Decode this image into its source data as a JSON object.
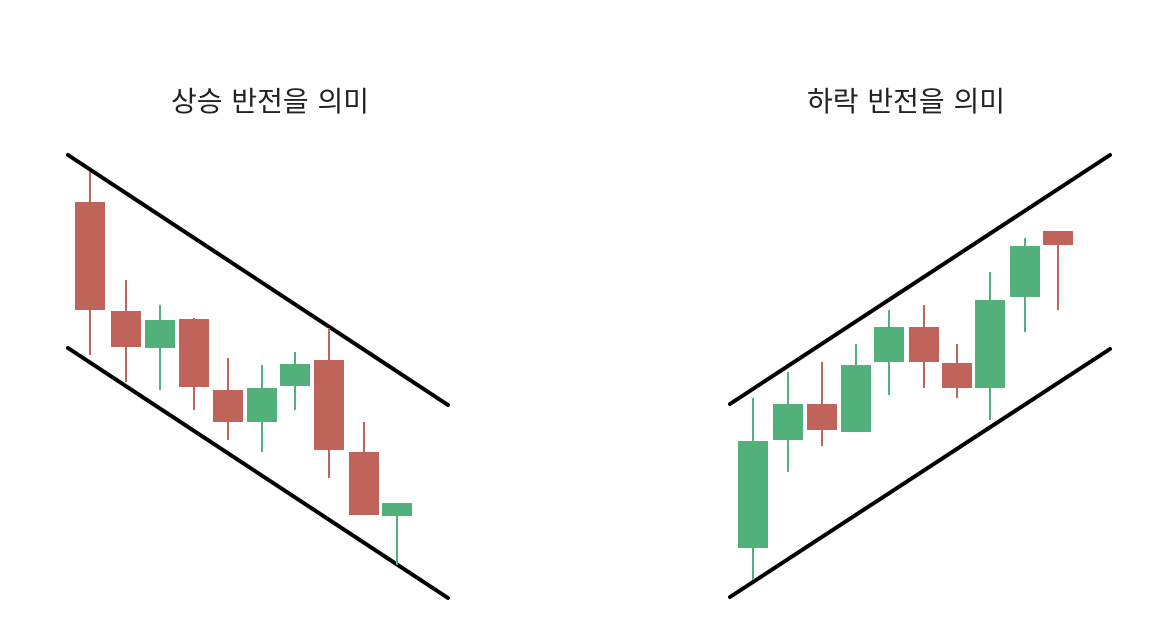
{
  "panels": [
    {
      "title": "상승 반전을 의미"
    },
    {
      "title": "하락 반전을 의미"
    }
  ]
}
